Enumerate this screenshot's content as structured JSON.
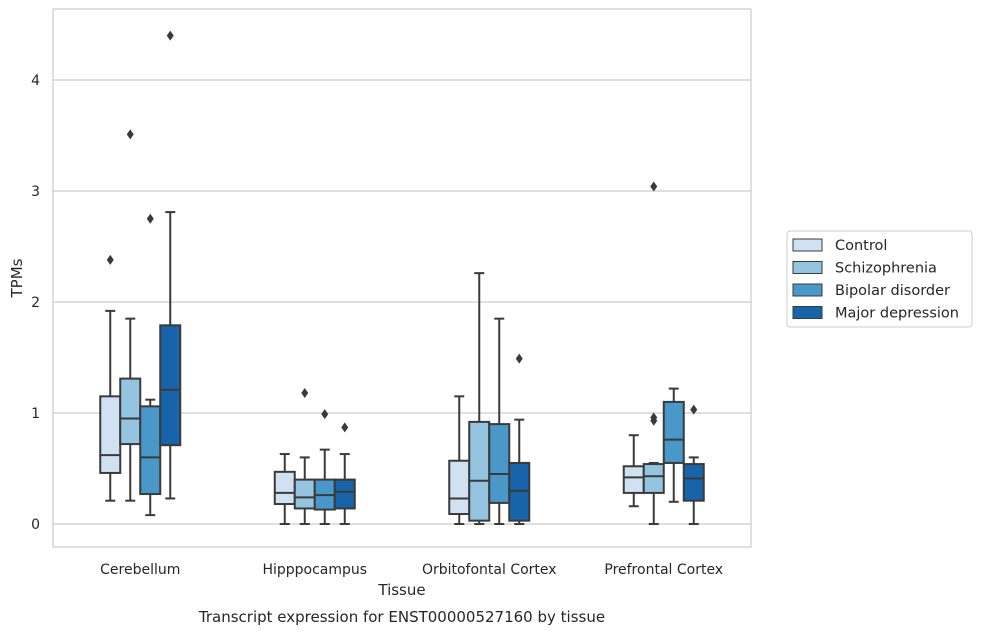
{
  "chart_data": {
    "type": "box",
    "title": "",
    "caption": "Transcript expression for ENST00000527160 by tissue",
    "xlabel": "Tissue",
    "ylabel": "TPMs",
    "ylim": [
      -0.2,
      4.6
    ],
    "yticks": [
      0,
      1,
      2,
      3,
      4
    ],
    "grid": "horizontal",
    "legend_position": "right",
    "categories": [
      "Cerebellum",
      "Hipppocampus",
      "Orbitofontal Cortex",
      "Prefrontal Cortex"
    ],
    "series": [
      {
        "name": "Control",
        "color": "#d0e1f2",
        "boxes": [
          {
            "whislo": 0.21,
            "q1": 0.46,
            "med": 0.62,
            "q3": 1.15,
            "whishi": 1.92,
            "fliers": [
              2.38
            ]
          },
          {
            "whislo": 0.0,
            "q1": 0.18,
            "med": 0.28,
            "q3": 0.47,
            "whishi": 0.63,
            "fliers": []
          },
          {
            "whislo": 0.0,
            "q1": 0.09,
            "med": 0.23,
            "q3": 0.57,
            "whishi": 1.15,
            "fliers": []
          },
          {
            "whislo": 0.16,
            "q1": 0.28,
            "med": 0.42,
            "q3": 0.52,
            "whishi": 0.8,
            "fliers": []
          }
        ]
      },
      {
        "name": "Schizophrenia",
        "color": "#94c4df",
        "boxes": [
          {
            "whislo": 0.21,
            "q1": 0.72,
            "med": 0.95,
            "q3": 1.31,
            "whishi": 1.85,
            "fliers": [
              3.51
            ]
          },
          {
            "whislo": 0.0,
            "q1": 0.14,
            "med": 0.24,
            "q3": 0.4,
            "whishi": 0.6,
            "fliers": [
              1.18
            ]
          },
          {
            "whislo": 0.0,
            "q1": 0.03,
            "med": 0.39,
            "q3": 0.92,
            "whishi": 2.26,
            "fliers": []
          },
          {
            "whislo": 0.0,
            "q1": 0.28,
            "med": 0.43,
            "q3": 0.54,
            "whishi": 0.55,
            "fliers": [
              0.93,
              0.96,
              3.04
            ]
          }
        ]
      },
      {
        "name": "Bipolar disorder",
        "color": "#4a98c9",
        "boxes": [
          {
            "whislo": 0.08,
            "q1": 0.27,
            "med": 0.6,
            "q3": 1.06,
            "whishi": 1.12,
            "fliers": [
              2.75
            ]
          },
          {
            "whislo": 0.0,
            "q1": 0.13,
            "med": 0.26,
            "q3": 0.4,
            "whishi": 0.67,
            "fliers": [
              0.99
            ]
          },
          {
            "whislo": 0.0,
            "q1": 0.19,
            "med": 0.45,
            "q3": 0.9,
            "whishi": 1.85,
            "fliers": []
          },
          {
            "whislo": 0.2,
            "q1": 0.55,
            "med": 0.76,
            "q3": 1.1,
            "whishi": 1.22,
            "fliers": []
          }
        ]
      },
      {
        "name": "Major depression",
        "color": "#1764ab",
        "boxes": [
          {
            "whislo": 0.23,
            "q1": 0.71,
            "med": 1.21,
            "q3": 1.79,
            "whishi": 2.81,
            "fliers": [
              4.4
            ]
          },
          {
            "whislo": 0.0,
            "q1": 0.14,
            "med": 0.29,
            "q3": 0.4,
            "whishi": 0.63,
            "fliers": [
              0.87
            ]
          },
          {
            "whislo": 0.0,
            "q1": 0.03,
            "med": 0.3,
            "q3": 0.55,
            "whishi": 0.94,
            "fliers": [
              1.49
            ]
          },
          {
            "whislo": 0.0,
            "q1": 0.21,
            "med": 0.41,
            "q3": 0.54,
            "whishi": 0.6,
            "fliers": [
              1.03
            ]
          }
        ]
      }
    ]
  }
}
